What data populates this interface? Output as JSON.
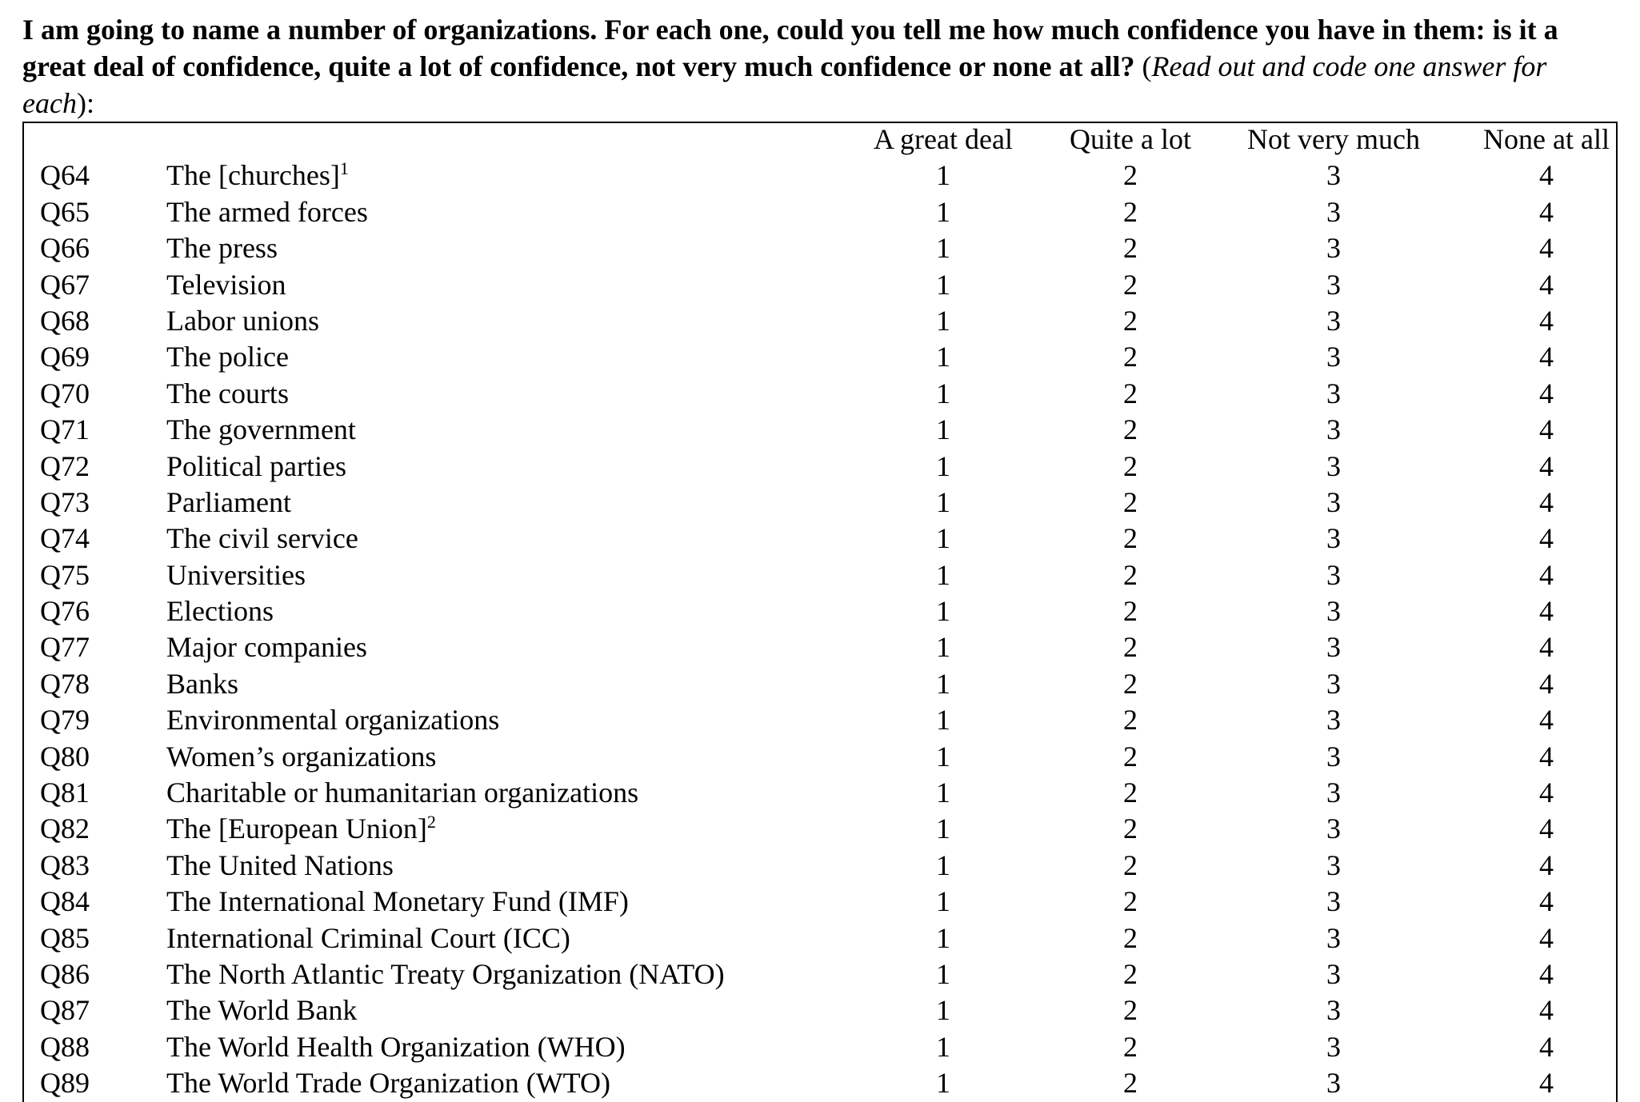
{
  "question": {
    "bold_text": "I am going to name a number of organizations. For each one, could you tell me how much confidence you have in them: is it a great deal of confidence, quite a lot of confidence, not very much confidence or none at all?",
    "paren_open": " (",
    "instruction": "Read out and code one answer for each",
    "paren_close": "):"
  },
  "columns": [
    "A great deal",
    "Quite a lot",
    "Not very much",
    "None at all"
  ],
  "codes": [
    "1",
    "2",
    "3",
    "4"
  ],
  "rows": [
    {
      "code": "Q64",
      "label": "The [churches]",
      "note": "1"
    },
    {
      "code": "Q65",
      "label": "The armed forces",
      "note": ""
    },
    {
      "code": "Q66",
      "label": "The press",
      "note": ""
    },
    {
      "code": "Q67",
      "label": "Television",
      "note": ""
    },
    {
      "code": "Q68",
      "label": "Labor unions",
      "note": ""
    },
    {
      "code": "Q69",
      "label": "The police",
      "note": ""
    },
    {
      "code": "Q70",
      "label": "The courts",
      "note": ""
    },
    {
      "code": "Q71",
      "label": "The government",
      "note": ""
    },
    {
      "code": "Q72",
      "label": "Political parties",
      "note": ""
    },
    {
      "code": "Q73",
      "label": "Parliament",
      "note": ""
    },
    {
      "code": "Q74",
      "label": "The civil service",
      "note": ""
    },
    {
      "code": "Q75",
      "label": "Universities",
      "note": ""
    },
    {
      "code": "Q76",
      "label": "Elections",
      "note": ""
    },
    {
      "code": "Q77",
      "label": "Major companies",
      "note": ""
    },
    {
      "code": "Q78",
      "label": "Banks",
      "note": ""
    },
    {
      "code": "Q79",
      "label": "Environmental organizations",
      "note": ""
    },
    {
      "code": "Q80",
      "label": "Women’s organizations",
      "note": ""
    },
    {
      "code": "Q81",
      "label": "Charitable or humanitarian organizations",
      "note": ""
    },
    {
      "code": "Q82",
      "label": "The [European Union]",
      "note": "2"
    },
    {
      "code": "Q83",
      "label": "The United Nations",
      "note": ""
    },
    {
      "code": "Q84",
      "label": "The International Monetary Fund (IMF)",
      "note": ""
    },
    {
      "code": "Q85",
      "label": "International Criminal Court (ICC)",
      "note": ""
    },
    {
      "code": "Q86",
      "label": "The North Atlantic Treaty Organization (NATO)",
      "note": ""
    },
    {
      "code": "Q87",
      "label": "The World Bank",
      "note": ""
    },
    {
      "code": "Q88",
      "label": "The World Health Organization (WHO)",
      "note": ""
    },
    {
      "code": "Q89",
      "label": "The World Trade Organization (WTO)",
      "note": ""
    }
  ]
}
